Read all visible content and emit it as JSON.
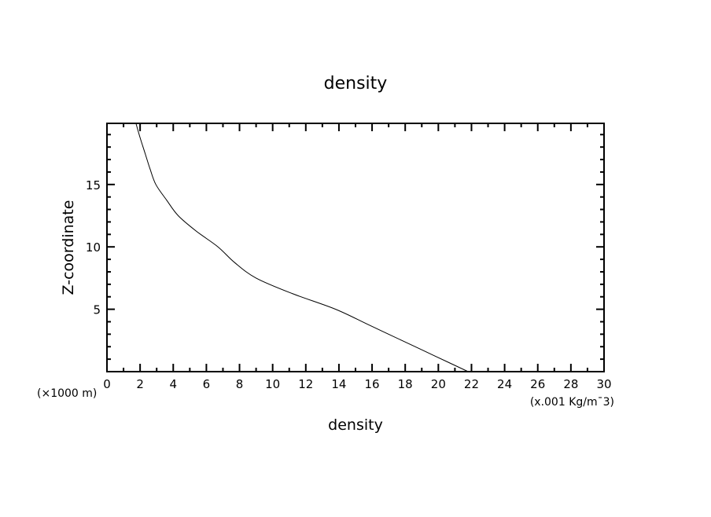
{
  "chart_data": {
    "type": "line",
    "title": "density",
    "xlabel": "density",
    "ylabel": "Z-coordinate",
    "x_unit_label": "(x.001 Kg/m¯3)",
    "y_unit_label": "(×1000 m)",
    "xlim": [
      0,
      30
    ],
    "ylim": [
      0,
      19.9
    ],
    "x_ticks": [
      0,
      2,
      4,
      6,
      8,
      10,
      12,
      14,
      16,
      18,
      20,
      22,
      24,
      26,
      28,
      30
    ],
    "y_ticks": [
      5,
      10,
      15
    ],
    "grid": false,
    "series": [
      {
        "x": [
          21.8,
          19.8,
          17.8,
          15.8,
          13.8,
          11.2,
          9.0,
          7.7,
          6.7,
          5.4,
          4.3,
          3.6,
          2.95,
          2.6,
          2.3,
          2.0,
          1.75
        ],
        "y": [
          0,
          1.25,
          2.5,
          3.75,
          5,
          6.25,
          7.5,
          8.75,
          10,
          11.25,
          12.5,
          13.75,
          15,
          16.25,
          17.5,
          18.75,
          19.9
        ],
        "color": "#000000"
      }
    ]
  }
}
